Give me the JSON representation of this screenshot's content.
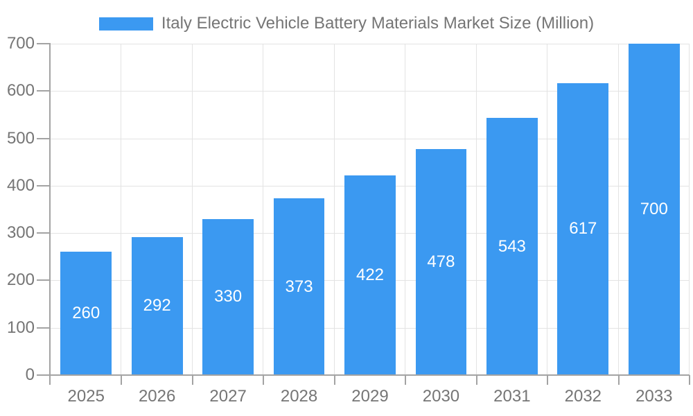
{
  "legend": {
    "label": "Italy Electric Vehicle Battery Materials Market Size (Million)",
    "swatch_color": "#3B99F1"
  },
  "chart_data": {
    "type": "bar",
    "title": "Italy Electric Vehicle Battery Materials Market Size (Million)",
    "categories": [
      "2025",
      "2026",
      "2027",
      "2028",
      "2029",
      "2030",
      "2031",
      "2032",
      "2033"
    ],
    "values": [
      260,
      292,
      330,
      373,
      422,
      478,
      543,
      617,
      700
    ],
    "series_name": "Italy Electric Vehicle Battery Materials Market Size (Million)",
    "xlabel": "",
    "ylabel": "",
    "ylim": [
      0,
      700
    ],
    "y_ticks": [
      0,
      100,
      200,
      300,
      400,
      500,
      600,
      700
    ],
    "grid": "on",
    "legend_position": "top",
    "bar_color": "#3B99F1",
    "value_label_color": "#ffffff",
    "axis_label_color": "#757575",
    "grid_color": "#E3E3E3",
    "axis_line_color": "#A3A3A3"
  }
}
